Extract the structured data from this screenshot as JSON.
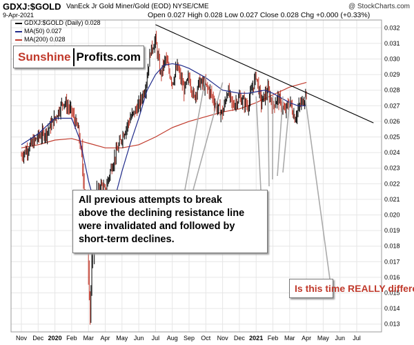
{
  "header": {
    "symbol": "GDXJ:$GOLD",
    "subtitle": "VanEck Jr Gold Miner/Gold (EOD) NYSE/CME",
    "date": "9-Apr-2021",
    "ohlc": "Open 0.027  High 0.028  Low 0.027  Close 0.028  Chg +0.000 (+0.33%)",
    "credit": "@ StockCharts.com"
  },
  "legend": {
    "main": "GDXJ:$GOLD (Daily) 0.028",
    "ma50": "MA(50) 0.027",
    "ma200": "MA(200) 0.028"
  },
  "logo": {
    "part1": "Sunshine",
    "part2": "Profits.com"
  },
  "annotations": {
    "main_box": [
      "All previous attempts to break",
      "above the declining resistance line",
      "were invalidated and followed by",
      "short-term declines."
    ],
    "question": "Is this time REALLY different?"
  },
  "colors": {
    "price_down": "#c0392b",
    "price_up": "#000000",
    "ma50": "#1f2a8a",
    "ma200": "#c0392b",
    "resistance": "#000000",
    "arrow": "#aaaaaa",
    "grid": "#e6e6e6"
  },
  "chart_data": {
    "type": "line",
    "x_ticks": [
      "Nov",
      "Dec",
      "2020",
      "Feb",
      "Mar",
      "Apr",
      "May",
      "Jun",
      "Jul",
      "Aug",
      "Sep",
      "Oct",
      "Nov",
      "Dec",
      "2021",
      "Feb",
      "Mar",
      "Apr",
      "May",
      "Jun",
      "Jul"
    ],
    "bold_ticks": [
      "2020",
      "2021"
    ],
    "y_ticks": [
      0.013,
      0.014,
      0.015,
      0.016,
      0.017,
      0.018,
      0.019,
      0.02,
      0.021,
      0.022,
      0.023,
      0.024,
      0.025,
      0.026,
      0.027,
      0.028,
      0.029,
      0.03,
      0.031,
      0.032
    ],
    "ylim": [
      0.0125,
      0.0325
    ],
    "grid": true,
    "series": [
      {
        "name": "GDXJ:$GOLD (Daily) 0.028",
        "type": "price",
        "points": [
          [
            0,
            0.0238
          ],
          [
            0.5,
            0.0244
          ],
          [
            1.0,
            0.025
          ],
          [
            1.5,
            0.0253
          ],
          [
            2.0,
            0.0262
          ],
          [
            2.5,
            0.0273
          ],
          [
            3.0,
            0.0266
          ],
          [
            3.4,
            0.0254
          ],
          [
            3.7,
            0.0228
          ],
          [
            3.9,
            0.0195
          ],
          [
            4.0,
            0.017
          ],
          [
            4.1,
            0.014
          ],
          [
            4.2,
            0.0165
          ],
          [
            4.4,
            0.0205
          ],
          [
            4.7,
            0.022
          ],
          [
            5.0,
            0.0215
          ],
          [
            5.3,
            0.0228
          ],
          [
            5.6,
            0.0238
          ],
          [
            6.0,
            0.025
          ],
          [
            6.5,
            0.0262
          ],
          [
            7.0,
            0.027
          ],
          [
            7.4,
            0.0282
          ],
          [
            7.7,
            0.0305
          ],
          [
            8.0,
            0.0312
          ],
          [
            8.3,
            0.029
          ],
          [
            8.6,
            0.03
          ],
          [
            9.0,
            0.0285
          ],
          [
            9.3,
            0.0295
          ],
          [
            9.7,
            0.028
          ],
          [
            10.0,
            0.0288
          ],
          [
            10.3,
            0.0275
          ],
          [
            10.6,
            0.0285
          ],
          [
            11.0,
            0.0283
          ],
          [
            11.3,
            0.0278
          ],
          [
            11.6,
            0.027
          ],
          [
            12.0,
            0.0265
          ],
          [
            12.3,
            0.028
          ],
          [
            12.6,
            0.027
          ],
          [
            13.0,
            0.0275
          ],
          [
            13.5,
            0.027
          ],
          [
            14.0,
            0.029
          ],
          [
            14.3,
            0.0272
          ],
          [
            14.7,
            0.028
          ],
          [
            15.0,
            0.027
          ],
          [
            15.3,
            0.0275
          ],
          [
            15.7,
            0.0266
          ],
          [
            16.0,
            0.0273
          ],
          [
            16.3,
            0.0262
          ],
          [
            16.6,
            0.027
          ],
          [
            16.9,
            0.0275
          ],
          [
            17.0,
            0.028
          ]
        ]
      },
      {
        "name": "MA(50) 0.027",
        "type": "ma",
        "points": [
          [
            0,
            0.0245
          ],
          [
            1.0,
            0.0252
          ],
          [
            2.0,
            0.0262
          ],
          [
            3.0,
            0.0262
          ],
          [
            3.5,
            0.0248
          ],
          [
            4.0,
            0.0222
          ],
          [
            4.5,
            0.0202
          ],
          [
            5.0,
            0.0198
          ],
          [
            5.5,
            0.0208
          ],
          [
            6.0,
            0.0228
          ],
          [
            6.5,
            0.0246
          ],
          [
            7.0,
            0.0262
          ],
          [
            7.5,
            0.028
          ],
          [
            8.0,
            0.029
          ],
          [
            8.5,
            0.0296
          ],
          [
            9.0,
            0.0297
          ],
          [
            9.5,
            0.0296
          ],
          [
            10.0,
            0.0294
          ],
          [
            10.5,
            0.0291
          ],
          [
            11.0,
            0.0288
          ],
          [
            11.5,
            0.0284
          ],
          [
            12.0,
            0.028
          ],
          [
            12.5,
            0.0279
          ],
          [
            13.0,
            0.0278
          ],
          [
            13.5,
            0.0278
          ],
          [
            14.0,
            0.0279
          ],
          [
            14.5,
            0.028
          ],
          [
            15.0,
            0.0278
          ],
          [
            15.5,
            0.0275
          ],
          [
            16.0,
            0.0272
          ],
          [
            16.5,
            0.027
          ],
          [
            17.0,
            0.027
          ]
        ]
      },
      {
        "name": "MA(200) 0.028",
        "type": "ma",
        "points": [
          [
            0,
            0.0243
          ],
          [
            1.0,
            0.0245
          ],
          [
            2.0,
            0.0248
          ],
          [
            3.0,
            0.0249
          ],
          [
            4.0,
            0.0246
          ],
          [
            5.0,
            0.0243
          ],
          [
            6.0,
            0.0243
          ],
          [
            7.0,
            0.0245
          ],
          [
            8.0,
            0.025
          ],
          [
            9.0,
            0.0256
          ],
          [
            10.0,
            0.026
          ],
          [
            11.0,
            0.0263
          ],
          [
            12.0,
            0.0266
          ],
          [
            13.0,
            0.0268
          ],
          [
            14.0,
            0.0272
          ],
          [
            15.0,
            0.0277
          ],
          [
            16.0,
            0.0282
          ],
          [
            17.0,
            0.0285
          ]
        ]
      }
    ],
    "resistance_line": [
      [
        8.0,
        0.0322
      ],
      [
        21.0,
        0.0259
      ]
    ],
    "resistance_touches": [
      [
        11.0,
        0.0289
      ],
      [
        12.0,
        0.0285
      ],
      [
        14.0,
        0.0276
      ],
      [
        14.7,
        0.0278
      ],
      [
        15.0,
        0.0276
      ],
      [
        15.6,
        0.0276
      ],
      [
        16.0,
        0.0273
      ]
    ]
  }
}
